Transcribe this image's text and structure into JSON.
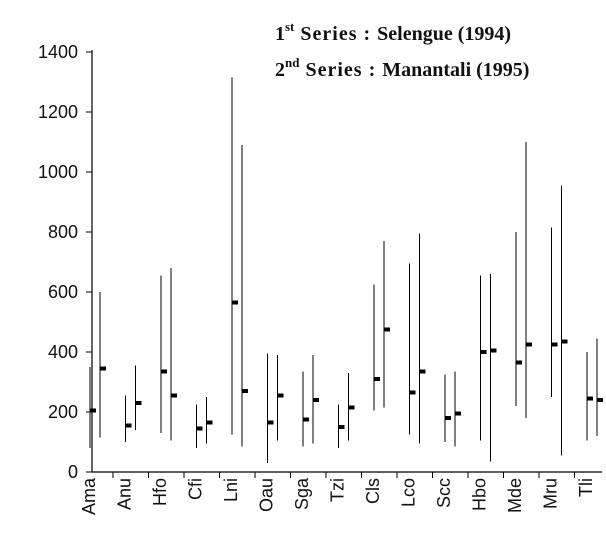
{
  "chart_data": {
    "type": "range",
    "categories": [
      "Ama",
      "Anu",
      "Hfo",
      "Cfi",
      "Lni",
      "Oau",
      "Sga",
      "Tzi",
      "Cls",
      "Lco",
      "Scc",
      "Hbo",
      "Mde",
      "Mru",
      "Tli"
    ],
    "series": [
      {
        "ordinal": "1",
        "ordinal_suffix": "st",
        "series_word": "Series :",
        "name": "Selengue (1994)",
        "color": "#000000",
        "low": [
          80,
          100,
          130,
          80,
          125,
          30,
          85,
          80,
          205,
          125,
          100,
          105,
          220,
          250,
          105
        ],
        "values": [
          205,
          155,
          335,
          145,
          565,
          165,
          175,
          150,
          310,
          265,
          180,
          400,
          365,
          425,
          245
        ],
        "high": [
          350,
          255,
          655,
          225,
          1315,
          395,
          335,
          225,
          625,
          695,
          325,
          655,
          800,
          815,
          400
        ]
      },
      {
        "ordinal": "2",
        "ordinal_suffix": "nd",
        "series_word": "Series :",
        "name": "Manantali (1995)",
        "color": "#000000",
        "low": [
          115,
          140,
          105,
          95,
          85,
          105,
          95,
          105,
          215,
          95,
          85,
          35,
          180,
          55,
          120
        ],
        "values": [
          345,
          230,
          255,
          165,
          270,
          255,
          240,
          215,
          475,
          335,
          195,
          405,
          425,
          435,
          240
        ],
        "high": [
          600,
          355,
          680,
          250,
          1090,
          390,
          390,
          330,
          770,
          795,
          335,
          660,
          1100,
          955,
          445
        ]
      }
    ],
    "ylim": [
      0,
      1400
    ],
    "yticks": [
      0,
      200,
      400,
      600,
      800,
      1000,
      1200,
      1400
    ],
    "grid": false
  }
}
